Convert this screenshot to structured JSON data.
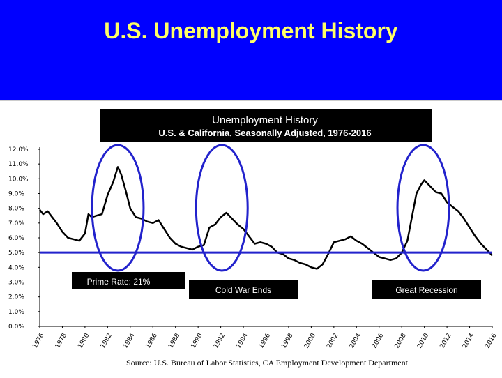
{
  "slide": {
    "title": "U.S. Unemployment History"
  },
  "chart_data": {
    "type": "line",
    "title": "Unemployment History",
    "subtitle": "U.S. & California, Seasonally Adjusted, 1976-2016",
    "source": "Source: U.S. Bureau of Labor Statistics, CA Employment Development Department",
    "xlim": [
      1976,
      2016
    ],
    "ylim": [
      0,
      12
    ],
    "x_ticks": [
      "1976",
      "1978",
      "1980",
      "1982",
      "1984",
      "1986",
      "1988",
      "1990",
      "1992",
      "1994",
      "1996",
      "1998",
      "2000",
      "2002",
      "2004",
      "2006",
      "2008",
      "2010",
      "2012",
      "2014",
      "2016"
    ],
    "y_ticks": [
      "0.0%",
      "1.0%",
      "2.0%",
      "3.0%",
      "4.0%",
      "5.0%",
      "6.0%",
      "7.0%",
      "8.0%",
      "9.0%",
      "10.0%",
      "11.0%",
      "12.0%"
    ],
    "series": [
      {
        "color": "#000000",
        "x": [
          1976.0,
          1976.3,
          1976.7,
          1977.0,
          1977.5,
          1978.0,
          1978.5,
          1979.0,
          1979.5,
          1980.0,
          1980.3,
          1980.6,
          1981.0,
          1981.5,
          1982.0,
          1982.5,
          1982.9,
          1983.2,
          1983.6,
          1984.0,
          1984.5,
          1985.0,
          1985.5,
          1986.0,
          1986.5,
          1987.0,
          1987.5,
          1988.0,
          1988.5,
          1989.0,
          1989.5,
          1990.0,
          1990.5,
          1991.0,
          1991.5,
          1992.0,
          1992.5,
          1993.0,
          1993.5,
          1994.0,
          1994.5,
          1995.0,
          1995.5,
          1996.0,
          1996.5,
          1997.0,
          1997.5,
          1998.0,
          1998.5,
          1999.0,
          1999.5,
          2000.0,
          2000.5,
          2001.0,
          2001.5,
          2002.0,
          2002.5,
          2003.0,
          2003.5,
          2004.0,
          2004.5,
          2005.0,
          2005.5,
          2006.0,
          2006.5,
          2007.0,
          2007.5,
          2008.0,
          2008.5,
          2009.0,
          2009.3,
          2009.7,
          2010.0,
          2010.5,
          2011.0,
          2011.5,
          2012.0,
          2012.5,
          2013.0,
          2013.5,
          2014.0,
          2014.5,
          2015.0,
          2015.5,
          2016.0
        ],
        "values": [
          7.9,
          7.6,
          7.8,
          7.5,
          7.0,
          6.4,
          6.0,
          5.9,
          5.8,
          6.3,
          7.6,
          7.4,
          7.5,
          7.6,
          8.9,
          9.8,
          10.8,
          10.3,
          9.2,
          8.0,
          7.4,
          7.3,
          7.1,
          7.0,
          7.2,
          6.6,
          6.0,
          5.6,
          5.4,
          5.3,
          5.2,
          5.4,
          5.5,
          6.7,
          6.9,
          7.4,
          7.7,
          7.3,
          6.9,
          6.6,
          6.1,
          5.6,
          5.7,
          5.6,
          5.4,
          5.0,
          4.9,
          4.6,
          4.5,
          4.3,
          4.2,
          4.0,
          3.9,
          4.2,
          4.9,
          5.7,
          5.8,
          5.9,
          6.1,
          5.8,
          5.6,
          5.3,
          5.0,
          4.7,
          4.6,
          4.5,
          4.6,
          5.0,
          5.8,
          7.8,
          9.0,
          9.6,
          9.9,
          9.5,
          9.1,
          9.0,
          8.4,
          8.1,
          7.8,
          7.3,
          6.7,
          6.1,
          5.6,
          5.2,
          4.8
        ]
      }
    ],
    "reference_line": {
      "y": 5.0,
      "color": "#2222cc"
    },
    "highlights": [
      {
        "x_center": 1982.9,
        "label": "Prime Rate:  21%"
      },
      {
        "x_center": 1992.1,
        "label": "Cold War Ends"
      },
      {
        "x_center": 2009.9,
        "label": "Great Recession"
      }
    ],
    "grid": false
  }
}
